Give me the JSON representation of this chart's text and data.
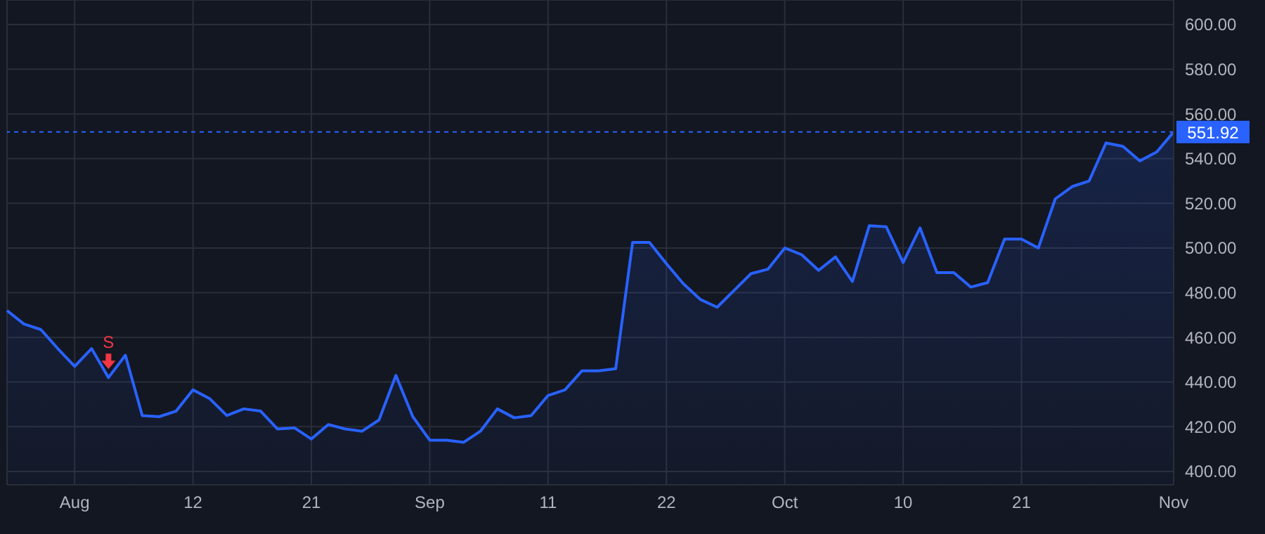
{
  "chart_data": {
    "type": "area",
    "categories": [
      null,
      null,
      null,
      null,
      "Aug",
      null,
      null,
      null,
      null,
      null,
      null,
      "12",
      null,
      null,
      null,
      null,
      null,
      null,
      "21",
      null,
      null,
      null,
      null,
      null,
      null,
      "Sep",
      null,
      null,
      null,
      null,
      null,
      null,
      "11",
      null,
      null,
      null,
      null,
      null,
      null,
      "22",
      null,
      null,
      null,
      null,
      null,
      null,
      "Oct",
      null,
      null,
      null,
      null,
      null,
      null,
      "10",
      null,
      null,
      null,
      null,
      null,
      null,
      "21",
      null,
      null,
      null,
      null,
      null,
      null,
      null,
      null,
      "Nov"
    ],
    "series": [
      {
        "color": "#2962ff",
        "values": [
          472,
          466,
          463.5,
          455,
          447,
          455,
          442,
          452,
          425,
          424.5,
          427,
          436.5,
          432.5,
          425,
          428,
          427,
          419,
          419.5,
          414.5,
          421,
          419,
          418,
          423,
          443,
          424.5,
          414,
          414,
          413,
          418,
          428,
          424,
          425,
          434,
          436.5,
          445,
          445,
          446,
          502.5,
          502.5,
          493,
          484,
          477,
          473.5,
          481,
          488.5,
          490.5,
          500,
          497,
          490,
          496,
          485,
          510,
          509.5,
          493.5,
          509,
          489,
          489,
          482.5,
          484.5,
          504,
          504,
          500,
          522,
          527.5,
          530,
          547,
          545.5,
          539,
          543,
          551.92
        ]
      }
    ],
    "ylim": [
      394,
      611
    ],
    "yticks": [
      {
        "value": 400,
        "label": "400.00"
      },
      {
        "value": 420,
        "label": "420.00"
      },
      {
        "value": 440,
        "label": "440.00"
      },
      {
        "value": 460,
        "label": "460.00"
      },
      {
        "value": 480,
        "label": "480.00"
      },
      {
        "value": 500,
        "label": "500.00"
      },
      {
        "value": 520,
        "label": "520.00"
      },
      {
        "value": 540,
        "label": "540.00"
      },
      {
        "value": 560,
        "label": "560.00"
      },
      {
        "value": 580,
        "label": "580.00"
      },
      {
        "value": 600,
        "label": "600.00"
      }
    ],
    "ref_lines": [
      {
        "axis": "y",
        "value": 551.92,
        "label": "551.92",
        "color": "#2962ff",
        "line_style": "dashed"
      }
    ],
    "annotations": [
      {
        "text": "S",
        "y": 442
      }
    ],
    "grid": true,
    "marker": "none"
  }
}
